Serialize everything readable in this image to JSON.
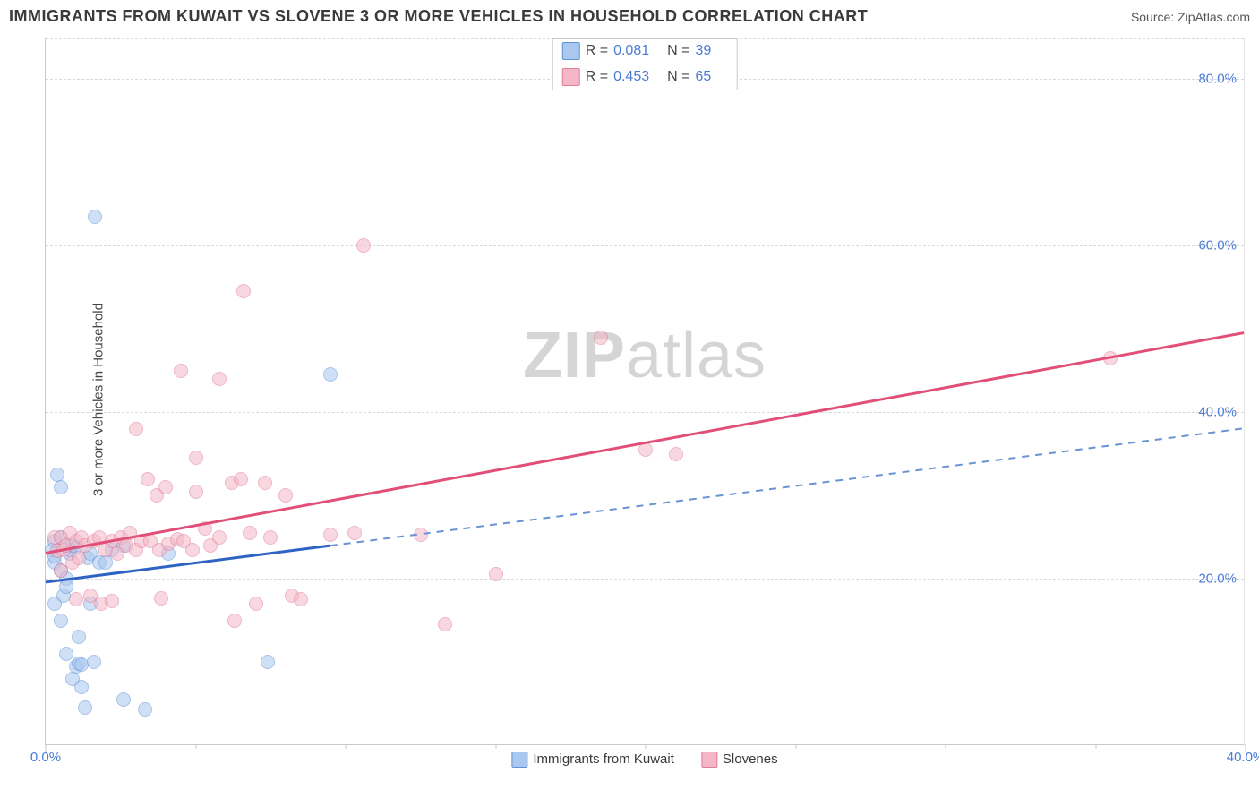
{
  "title": "IMMIGRANTS FROM KUWAIT VS SLOVENE 3 OR MORE VEHICLES IN HOUSEHOLD CORRELATION CHART",
  "source_prefix": "Source: ",
  "source_name": "ZipAtlas.com",
  "y_axis_label": "3 or more Vehicles in Household",
  "watermark_bold": "ZIP",
  "watermark_rest": "atlas",
  "plot": {
    "xlim": [
      0,
      40
    ],
    "ylim": [
      0,
      85
    ],
    "x_ticks_labeled": [
      {
        "v": 0,
        "label": "0.0%"
      },
      {
        "v": 40,
        "label": "40.0%"
      }
    ],
    "x_ticks_minor": [
      5,
      10,
      15,
      20,
      25,
      30,
      35
    ],
    "y_ticks": [
      {
        "v": 20,
        "label": "20.0%"
      },
      {
        "v": 40,
        "label": "40.0%"
      },
      {
        "v": 60,
        "label": "60.0%"
      },
      {
        "v": 80,
        "label": "80.0%"
      }
    ],
    "grid_color": "#d9d9d9",
    "axis_color": "#c9c9c9",
    "tick_label_color": "#4b7bd6"
  },
  "series": [
    {
      "id": "kuwait",
      "label": "Immigrants from Kuwait",
      "fill": "#a9c7ef",
      "stroke": "#5f93d6",
      "trend_color": "#2e63c4",
      "trend_dash_color": "#6a93d3",
      "R": "0.081",
      "N": "39",
      "trend": {
        "y_at_x0": 19.5,
        "y_at_x40": 38,
        "x_solid_end": 9.5
      },
      "points": [
        [
          0.2,
          23.5
        ],
        [
          0.3,
          24.5
        ],
        [
          0.3,
          22
        ],
        [
          0.3,
          22.7
        ],
        [
          0.3,
          17
        ],
        [
          0.4,
          32.5
        ],
        [
          0.5,
          31
        ],
        [
          0.5,
          25
        ],
        [
          0.5,
          21
        ],
        [
          0.5,
          15
        ],
        [
          0.6,
          18
        ],
        [
          0.7,
          20
        ],
        [
          0.7,
          19
        ],
        [
          0.7,
          11
        ],
        [
          0.8,
          23.5
        ],
        [
          0.8,
          23
        ],
        [
          0.9,
          24
        ],
        [
          0.9,
          8
        ],
        [
          1.0,
          23.8
        ],
        [
          1.0,
          9.5
        ],
        [
          1.1,
          13
        ],
        [
          1.1,
          9.8
        ],
        [
          1.2,
          9.7
        ],
        [
          1.2,
          7
        ],
        [
          1.3,
          4.5
        ],
        [
          1.4,
          22.5
        ],
        [
          1.5,
          23
        ],
        [
          1.5,
          17
        ],
        [
          1.6,
          10
        ],
        [
          1.65,
          63.5
        ],
        [
          1.8,
          22
        ],
        [
          2.0,
          22
        ],
        [
          2.2,
          23.5
        ],
        [
          2.6,
          24
        ],
        [
          2.6,
          5.5
        ],
        [
          3.3,
          4.3
        ],
        [
          4.1,
          23
        ],
        [
          7.4,
          10
        ],
        [
          9.5,
          44.5
        ]
      ]
    },
    {
      "id": "slovenes",
      "label": "Slovenes",
      "fill": "#f3b7c7",
      "stroke": "#e07b99",
      "trend_color": "#e14e77",
      "R": "0.453",
      "N": "65",
      "trend": {
        "y_at_x0": 23,
        "y_at_x40": 49.5,
        "x_solid_end": 40
      },
      "points": [
        [
          0.3,
          25
        ],
        [
          0.4,
          23.3
        ],
        [
          0.5,
          21
        ],
        [
          0.5,
          25
        ],
        [
          0.6,
          23.5
        ],
        [
          0.7,
          24
        ],
        [
          0.8,
          25.5
        ],
        [
          0.9,
          22
        ],
        [
          1.0,
          24.5
        ],
        [
          1.0,
          17.5
        ],
        [
          1.1,
          22.5
        ],
        [
          1.2,
          25
        ],
        [
          1.3,
          24
        ],
        [
          1.5,
          18
        ],
        [
          1.6,
          24.5
        ],
        [
          1.8,
          25
        ],
        [
          1.85,
          17
        ],
        [
          2.0,
          23.5
        ],
        [
          2.2,
          24.5
        ],
        [
          2.2,
          17.3
        ],
        [
          2.4,
          23
        ],
        [
          2.5,
          25
        ],
        [
          2.7,
          24
        ],
        [
          2.8,
          25.5
        ],
        [
          3.0,
          38
        ],
        [
          3.0,
          23.5
        ],
        [
          3.2,
          24.5
        ],
        [
          3.4,
          32
        ],
        [
          3.5,
          24.5
        ],
        [
          3.7,
          30
        ],
        [
          3.8,
          23.5
        ],
        [
          3.85,
          17.6
        ],
        [
          4.0,
          31
        ],
        [
          4.1,
          24.2
        ],
        [
          4.4,
          24.8
        ],
        [
          4.5,
          45
        ],
        [
          4.6,
          24.5
        ],
        [
          4.9,
          23.5
        ],
        [
          5.0,
          30.5
        ],
        [
          5.0,
          34.5
        ],
        [
          5.3,
          26
        ],
        [
          5.5,
          24
        ],
        [
          5.8,
          44
        ],
        [
          5.8,
          25
        ],
        [
          6.2,
          31.5
        ],
        [
          6.3,
          15
        ],
        [
          6.5,
          32
        ],
        [
          6.6,
          54.5
        ],
        [
          6.8,
          25.5
        ],
        [
          7.0,
          17
        ],
        [
          7.3,
          31.5
        ],
        [
          7.5,
          25
        ],
        [
          8.0,
          30
        ],
        [
          8.2,
          18
        ],
        [
          8.5,
          17.5
        ],
        [
          9.5,
          25.3
        ],
        [
          10.3,
          25.5
        ],
        [
          10.6,
          60
        ],
        [
          12.5,
          25.3
        ],
        [
          13.3,
          14.5
        ],
        [
          15.0,
          20.5
        ],
        [
          18.5,
          49
        ],
        [
          20.0,
          35.5
        ],
        [
          21.0,
          35
        ],
        [
          35.5,
          46.5
        ]
      ]
    }
  ],
  "legend_top_labels": {
    "R": "R =",
    "N": "N ="
  },
  "swatch_border": "#888"
}
